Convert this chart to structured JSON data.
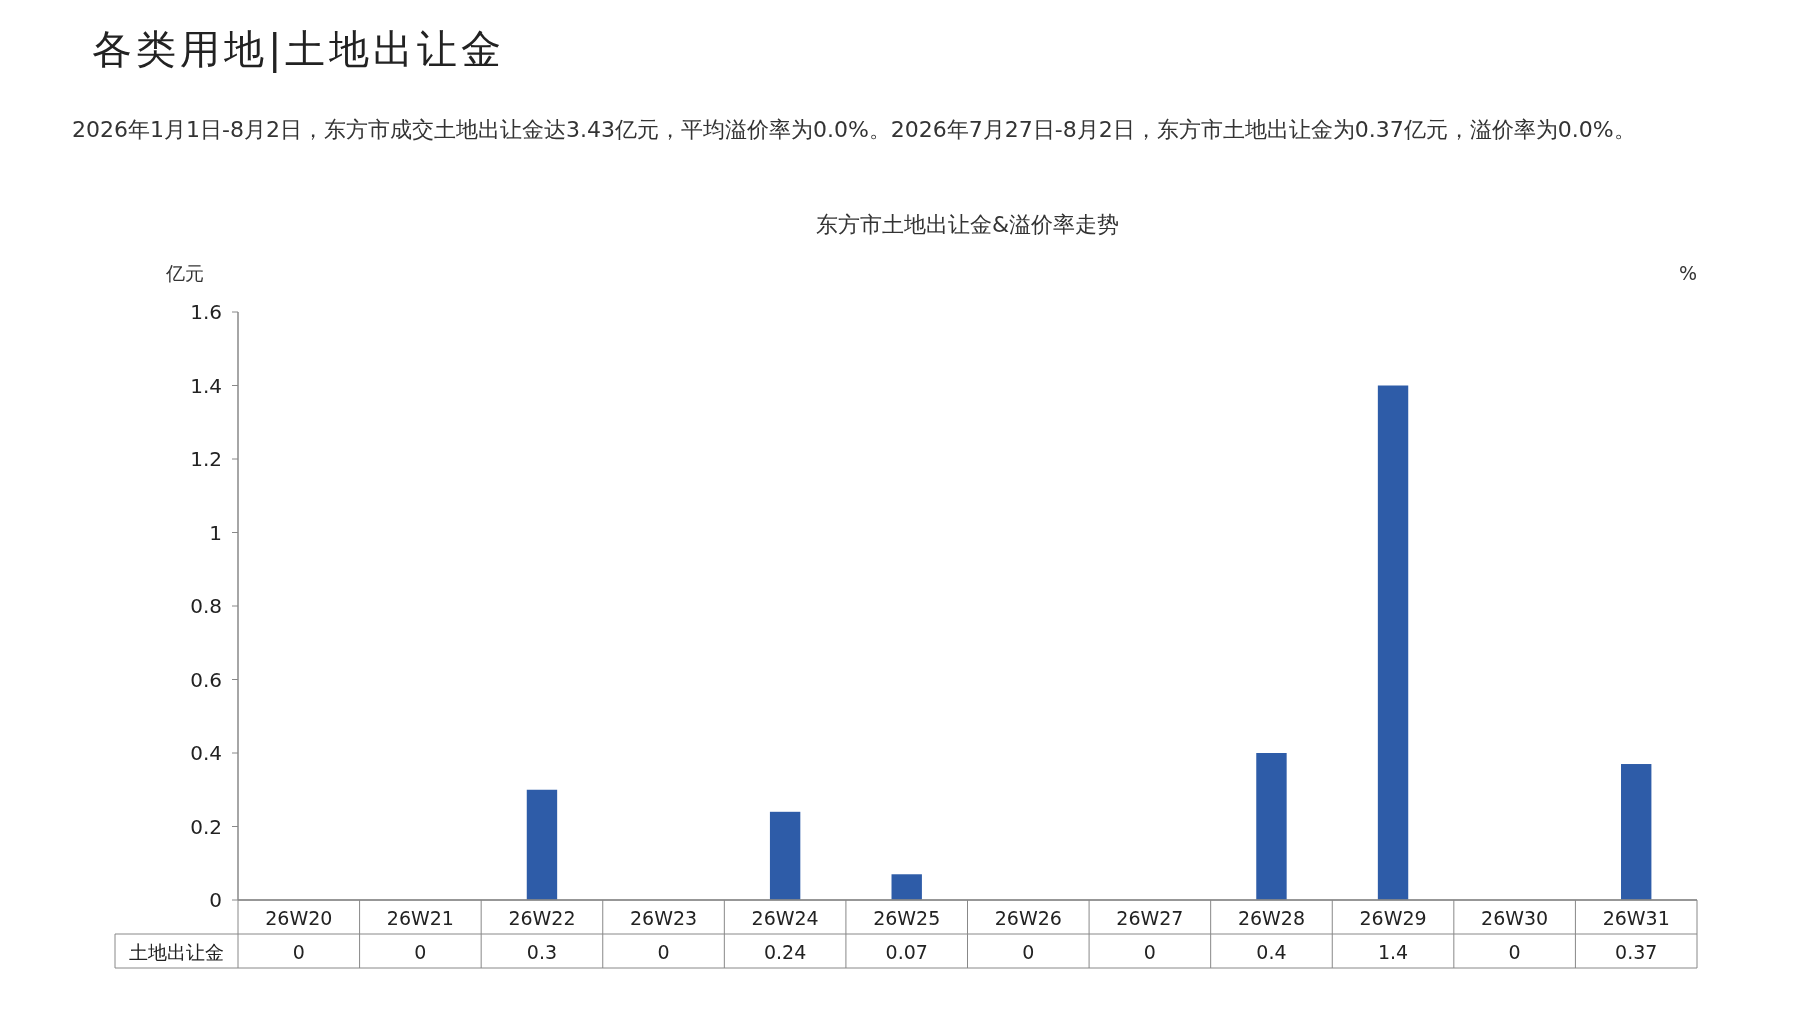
{
  "chart_data": {
    "type": "bar",
    "title": "东方市土地出让金&溢价率走势",
    "subtitle": "2026年1月1日-8月2日，东方市成交土地出让金达3.43亿元，平均溢价率为0.0%。2026年7月27日-8月2日，东方市土地出让金为0.37亿元，溢价率为0.0%。",
    "annotations": [
      "各类用地|土地出让金"
    ],
    "ylabel": "亿元",
    "y2label": "%",
    "categories": [
      "26W20",
      "26W21",
      "26W22",
      "26W23",
      "26W24",
      "26W25",
      "26W26",
      "26W27",
      "26W28",
      "26W29",
      "26W30",
      "26W31"
    ],
    "series": [
      {
        "name": "土地出让金",
        "color": "#2e5ca8",
        "values": [
          0,
          0,
          0.3,
          0,
          0.24,
          0.07,
          0,
          0,
          0.4,
          1.4,
          0,
          0.37
        ]
      }
    ],
    "ylim": [
      0,
      1.6
    ],
    "yticks": [
      0,
      0.2,
      0.4,
      0.6,
      0.8,
      1,
      1.2,
      1.4,
      1.6
    ],
    "grid": false,
    "data_labels": true
  }
}
